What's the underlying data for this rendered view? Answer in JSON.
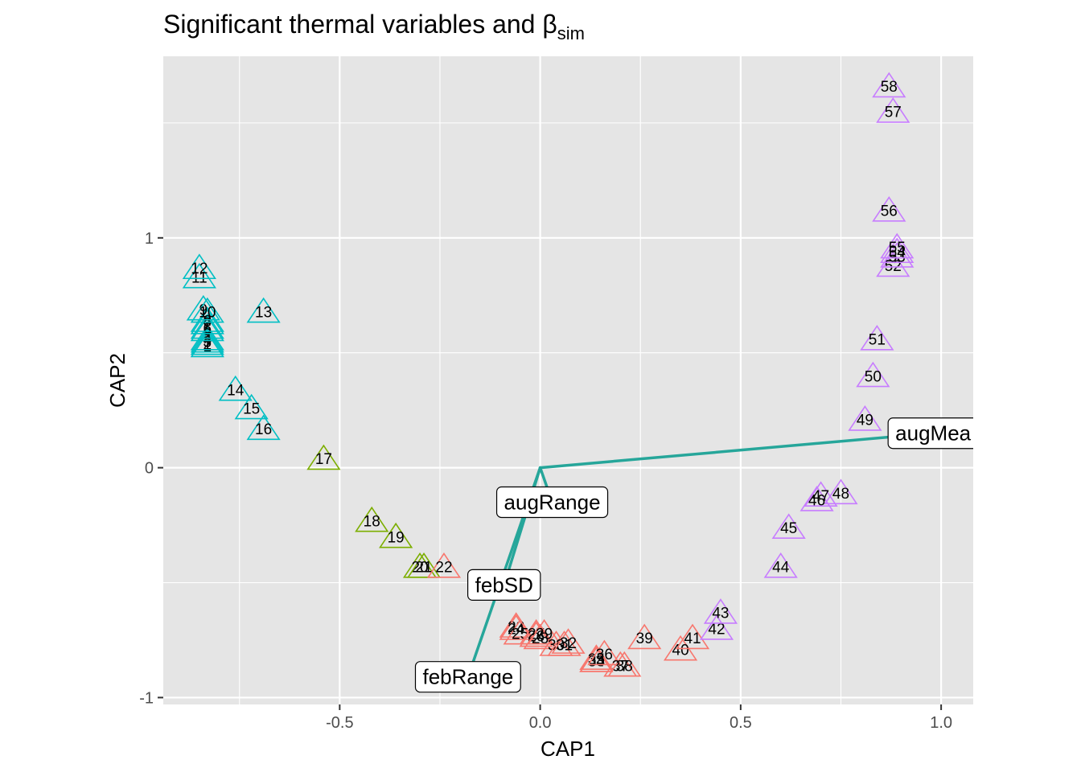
{
  "chart_data": {
    "type": "scatter",
    "title": "Significant thermal variables and β",
    "title_subscript": "sim",
    "xlabel": "CAP1",
    "ylabel": "CAP2",
    "xlim": [
      -0.94,
      1.08
    ],
    "ylim": [
      -1.03,
      1.79
    ],
    "x_ticks": [
      -0.5,
      0.0,
      0.5,
      1.0
    ],
    "x_tick_labels": [
      "-0.5",
      "0.0",
      "0.5",
      "1.0"
    ],
    "y_ticks": [
      -1,
      0,
      1
    ],
    "y_tick_labels": [
      "-1",
      "0",
      "1"
    ],
    "grid": true,
    "legend": "none",
    "marker": "open-triangle",
    "group_colors": {
      "red": "#F8766D",
      "olive": "#7CAE00",
      "teal": "#00BFC4",
      "purple": "#C77CFF"
    },
    "arrow_color": "#26A69A",
    "panel_background": "#E5E5E5",
    "gridline_color": "#FFFFFF",
    "points": [
      {
        "label": "1",
        "x": -0.83,
        "y": 0.53,
        "group": "teal"
      },
      {
        "label": "2",
        "x": -0.83,
        "y": 0.54,
        "group": "teal"
      },
      {
        "label": "3",
        "x": -0.83,
        "y": 0.55,
        "group": "teal"
      },
      {
        "label": "4",
        "x": -0.83,
        "y": 0.56,
        "group": "teal"
      },
      {
        "label": "5",
        "x": -0.83,
        "y": 0.6,
        "group": "teal"
      },
      {
        "label": "6",
        "x": -0.83,
        "y": 0.61,
        "group": "teal"
      },
      {
        "label": "7",
        "x": -0.83,
        "y": 0.63,
        "group": "teal"
      },
      {
        "label": "8",
        "x": -0.83,
        "y": 0.64,
        "group": "teal"
      },
      {
        "label": "9",
        "x": -0.84,
        "y": 0.69,
        "group": "teal"
      },
      {
        "label": "10",
        "x": -0.83,
        "y": 0.68,
        "group": "teal"
      },
      {
        "label": "11",
        "x": -0.85,
        "y": 0.83,
        "group": "teal"
      },
      {
        "label": "12",
        "x": -0.85,
        "y": 0.87,
        "group": "teal"
      },
      {
        "label": "13",
        "x": -0.69,
        "y": 0.68,
        "group": "teal"
      },
      {
        "label": "14",
        "x": -0.76,
        "y": 0.34,
        "group": "teal"
      },
      {
        "label": "15",
        "x": -0.72,
        "y": 0.26,
        "group": "teal"
      },
      {
        "label": "16",
        "x": -0.69,
        "y": 0.17,
        "group": "teal"
      },
      {
        "label": "17",
        "x": -0.54,
        "y": 0.04,
        "group": "olive"
      },
      {
        "label": "18",
        "x": -0.42,
        "y": -0.23,
        "group": "olive"
      },
      {
        "label": "19",
        "x": -0.36,
        "y": -0.3,
        "group": "olive"
      },
      {
        "label": "20",
        "x": -0.3,
        "y": -0.43,
        "group": "olive"
      },
      {
        "label": "21",
        "x": -0.29,
        "y": -0.43,
        "group": "olive"
      },
      {
        "label": "22",
        "x": -0.24,
        "y": -0.43,
        "group": "red"
      },
      {
        "label": "23",
        "x": -0.06,
        "y": -0.69,
        "group": "red"
      },
      {
        "label": "24",
        "x": -0.06,
        "y": -0.7,
        "group": "red"
      },
      {
        "label": "25",
        "x": -0.05,
        "y": -0.72,
        "group": "red"
      },
      {
        "label": "26",
        "x": -0.01,
        "y": -0.73,
        "group": "red"
      },
      {
        "label": "27",
        "x": -0.01,
        "y": -0.72,
        "group": "red"
      },
      {
        "label": "28",
        "x": 0.0,
        "y": -0.74,
        "group": "red"
      },
      {
        "label": "29",
        "x": 0.01,
        "y": -0.72,
        "group": "red"
      },
      {
        "label": "30",
        "x": 0.04,
        "y": -0.77,
        "group": "red"
      },
      {
        "label": "31",
        "x": 0.06,
        "y": -0.77,
        "group": "red"
      },
      {
        "label": "32",
        "x": 0.07,
        "y": -0.76,
        "group": "red"
      },
      {
        "label": "33",
        "x": 0.14,
        "y": -0.84,
        "group": "red"
      },
      {
        "label": "34",
        "x": 0.14,
        "y": -0.84,
        "group": "red"
      },
      {
        "label": "35",
        "x": 0.14,
        "y": -0.83,
        "group": "red"
      },
      {
        "label": "36",
        "x": 0.16,
        "y": -0.81,
        "group": "red"
      },
      {
        "label": "37",
        "x": 0.2,
        "y": -0.86,
        "group": "red"
      },
      {
        "label": "38",
        "x": 0.21,
        "y": -0.86,
        "group": "red"
      },
      {
        "label": "39",
        "x": 0.26,
        "y": -0.74,
        "group": "red"
      },
      {
        "label": "40",
        "x": 0.35,
        "y": -0.79,
        "group": "red"
      },
      {
        "label": "41",
        "x": 0.38,
        "y": -0.74,
        "group": "red"
      },
      {
        "label": "42",
        "x": 0.44,
        "y": -0.7,
        "group": "purple"
      },
      {
        "label": "43",
        "x": 0.45,
        "y": -0.63,
        "group": "purple"
      },
      {
        "label": "44",
        "x": 0.6,
        "y": -0.43,
        "group": "purple"
      },
      {
        "label": "45",
        "x": 0.62,
        "y": -0.26,
        "group": "purple"
      },
      {
        "label": "46",
        "x": 0.69,
        "y": -0.14,
        "group": "purple"
      },
      {
        "label": "47",
        "x": 0.7,
        "y": -0.12,
        "group": "purple"
      },
      {
        "label": "48",
        "x": 0.75,
        "y": -0.11,
        "group": "purple"
      },
      {
        "label": "49",
        "x": 0.81,
        "y": 0.21,
        "group": "purple"
      },
      {
        "label": "50",
        "x": 0.83,
        "y": 0.4,
        "group": "purple"
      },
      {
        "label": "51",
        "x": 0.84,
        "y": 0.56,
        "group": "purple"
      },
      {
        "label": "52",
        "x": 0.88,
        "y": 0.88,
        "group": "purple"
      },
      {
        "label": "53",
        "x": 0.89,
        "y": 0.92,
        "group": "purple"
      },
      {
        "label": "54",
        "x": 0.89,
        "y": 0.94,
        "group": "purple"
      },
      {
        "label": "55",
        "x": 0.89,
        "y": 0.96,
        "group": "purple"
      },
      {
        "label": "56",
        "x": 0.87,
        "y": 1.12,
        "group": "purple"
      },
      {
        "label": "57",
        "x": 0.88,
        "y": 1.55,
        "group": "purple"
      },
      {
        "label": "58",
        "x": 0.87,
        "y": 1.66,
        "group": "purple"
      }
    ],
    "vectors": [
      {
        "label": "augMea",
        "x": 0.98,
        "y": 0.15
      },
      {
        "label": "augRange",
        "x": 0.03,
        "y": -0.15
      },
      {
        "label": "febSD",
        "x": -0.09,
        "y": -0.51
      },
      {
        "label": "febRange",
        "x": -0.18,
        "y": -0.91
      }
    ]
  }
}
